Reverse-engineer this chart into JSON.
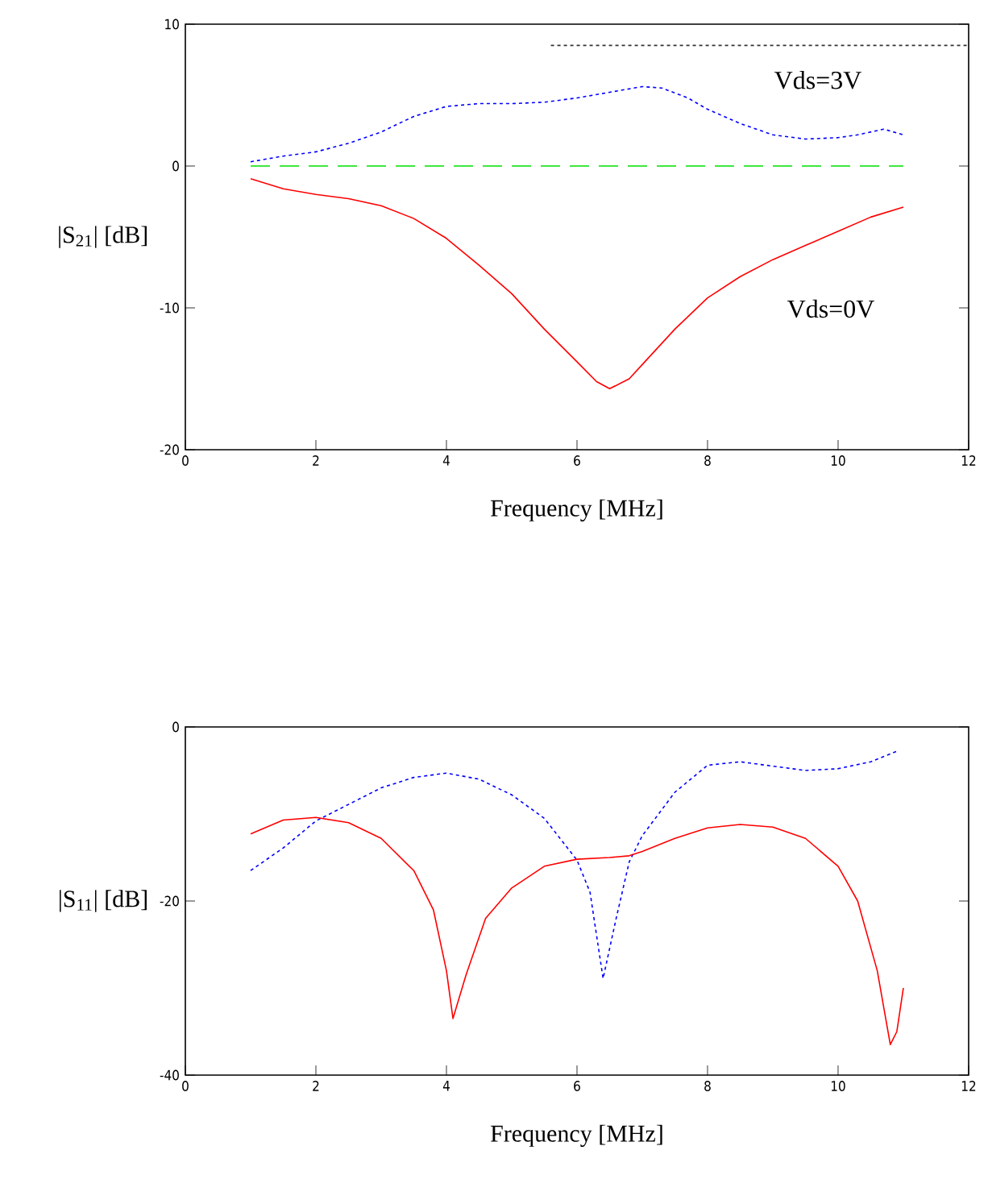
{
  "chart_data": [
    {
      "type": "line",
      "xlabel": "Frequency [MHz]",
      "ylabel": "|S$_{21}$| [dB]",
      "xlim": [
        0,
        12
      ],
      "ylim": [
        -20,
        10
      ],
      "xticks": [
        0,
        2,
        4,
        6,
        8,
        10,
        12
      ],
      "yticks": [
        -20,
        -10,
        0,
        10
      ],
      "grid": false,
      "legend": false,
      "marker": "none",
      "series": [
        {
          "name": "Vds=3V",
          "color": "#0000ff",
          "line_style": "dotted",
          "x": [
            1,
            1.5,
            2,
            2.5,
            3,
            3.5,
            4,
            4.5,
            5,
            5.5,
            6,
            6.5,
            7,
            7.3,
            7.7,
            8,
            8.5,
            9,
            9.5,
            10,
            10.3,
            10.7,
            11
          ],
          "values": [
            0.3,
            0.7,
            1.0,
            1.6,
            2.4,
            3.5,
            4.2,
            4.4,
            4.4,
            4.5,
            4.8,
            5.2,
            5.6,
            5.5,
            4.8,
            4.0,
            3.0,
            2.2,
            1.9,
            2.0,
            2.2,
            2.6,
            2.2
          ]
        },
        {
          "color": "#00e000",
          "line_style": "dashed",
          "x": [
            1,
            11
          ],
          "values": [
            0,
            0
          ]
        },
        {
          "name": "Vds=0V",
          "color": "#ff0000",
          "line_style": "solid",
          "x": [
            1,
            1.5,
            2,
            2.5,
            3,
            3.5,
            4,
            4.5,
            5,
            5.5,
            6,
            6.3,
            6.5,
            6.8,
            7,
            7.5,
            8,
            8.5,
            9,
            9.5,
            10,
            10.5,
            11
          ],
          "values": [
            -0.9,
            -1.6,
            -2.0,
            -2.3,
            -2.8,
            -3.7,
            -5.1,
            -7.0,
            -9.0,
            -11.5,
            -13.8,
            -15.2,
            -15.7,
            -15.0,
            -14.0,
            -11.5,
            -9.3,
            -7.8,
            -6.6,
            -5.6,
            -4.6,
            -3.6,
            -2.9
          ]
        },
        {
          "color": "#333333",
          "line_style": "dotted",
          "x": [
            5.6,
            12
          ],
          "values": [
            8.5,
            8.5
          ]
        }
      ]
    },
    {
      "type": "line",
      "xlabel": "Frequency [MHz]",
      "ylabel": "|S$_{11}$| [dB]",
      "xlim": [
        0,
        12
      ],
      "ylim": [
        -40,
        0
      ],
      "xticks": [
        0,
        2,
        4,
        6,
        8,
        10,
        12
      ],
      "yticks": [
        -40,
        -20,
        0
      ],
      "grid": false,
      "legend": false,
      "marker": "none",
      "series": [
        {
          "color": "#0000ff",
          "line_style": "dotted",
          "x": [
            1,
            1.5,
            2,
            2.5,
            3,
            3.5,
            4,
            4.5,
            5,
            5.5,
            6,
            6.2,
            6.4,
            6.6,
            6.8,
            7,
            7.5,
            8,
            8.5,
            9,
            9.5,
            10,
            10.5,
            10.9
          ],
          "values": [
            -16.5,
            -13.9,
            -10.8,
            -8.9,
            -7.0,
            -5.8,
            -5.3,
            -6.0,
            -7.8,
            -10.5,
            -15.3,
            -19,
            -28.9,
            -22,
            -15.5,
            -12.5,
            -7.5,
            -4.4,
            -4.0,
            -4.5,
            -5.0,
            -4.8,
            -4.0,
            -2.8
          ]
        },
        {
          "color": "#ff0000",
          "line_style": "solid",
          "x": [
            1,
            1.5,
            2,
            2.5,
            3,
            3.5,
            3.8,
            4.0,
            4.1,
            4.3,
            4.6,
            5,
            5.5,
            6,
            6.5,
            6.8,
            7,
            7.5,
            8,
            8.5,
            9,
            9.5,
            10,
            10.3,
            10.6,
            10.8,
            10.9,
            11
          ],
          "values": [
            -12.3,
            -10.7,
            -10.4,
            -11.0,
            -12.8,
            -16.5,
            -21,
            -28,
            -33.5,
            -28.5,
            -22,
            -18.5,
            -16.0,
            -15.2,
            -15.0,
            -14.8,
            -14.3,
            -12.8,
            -11.6,
            -11.2,
            -11.5,
            -12.8,
            -16,
            -20,
            -28,
            -36.5,
            -35,
            -30
          ]
        }
      ]
    }
  ]
}
